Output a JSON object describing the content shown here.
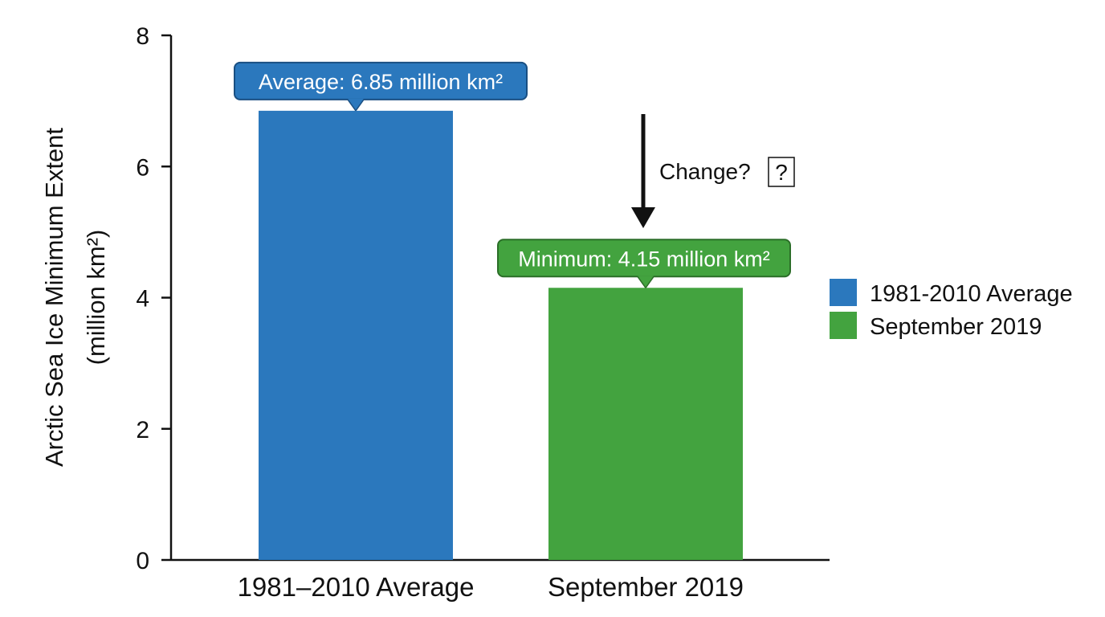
{
  "chart_data": {
    "type": "bar",
    "categories": [
      "1981–2010 Average",
      "September 2019"
    ],
    "values": [
      6.85,
      4.15
    ],
    "colors": [
      "#2b78bd",
      "#43a33f"
    ],
    "ylabel_line1": "Arctic Sea Ice Minimum Extent",
    "ylabel_line2": "(million km²)",
    "ylim": [
      0,
      8
    ],
    "yticks": [
      "0",
      "2",
      "4",
      "6",
      "8"
    ],
    "annotations": [
      {
        "label": "Average: 6.85 million km²",
        "category": "1981–2010 Average",
        "value": 6.85
      },
      {
        "label": "Minimum: 4.15 million km²",
        "category": "September 2019",
        "value": 4.15
      }
    ],
    "change_annotation": {
      "label": "Change?",
      "box": "?",
      "arrow": "down"
    },
    "legend": {
      "position": "right",
      "entries": [
        {
          "label": "1981-2010 Average",
          "color": "#2b78bd"
        },
        {
          "label": "September 2019",
          "color": "#43a33f"
        }
      ]
    },
    "grid": false
  }
}
